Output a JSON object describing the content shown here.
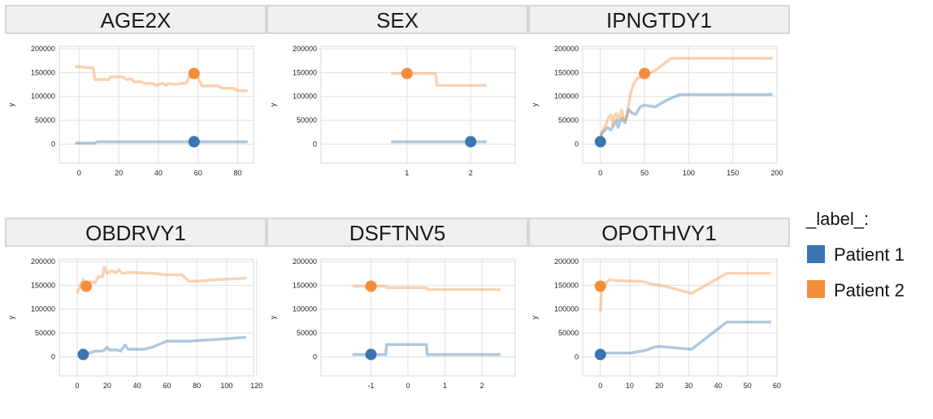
{
  "colors": {
    "patient1": "#3a75b0",
    "patient2": "#f28e3b",
    "strip_bg": "#f0f0f0",
    "strip_border": "#cccccc",
    "grid": "#e0e0e0"
  },
  "legend": {
    "title": "_label_:",
    "items": [
      {
        "label": "Patient 1",
        "color": "#3a75b0"
      },
      {
        "label": "Patient 2",
        "color": "#f28e3b"
      }
    ]
  },
  "chart_data": [
    {
      "type": "line",
      "title": "AGE2X",
      "ylabel": "y",
      "xlim": [
        -10,
        88
      ],
      "ylim": [
        -40000,
        205000
      ],
      "xticks": [
        {
          "v": 0,
          "t": "0"
        },
        {
          "v": 20,
          "t": "20"
        },
        {
          "v": 40,
          "t": "40"
        },
        {
          "v": 60,
          "t": "60"
        },
        {
          "v": 80,
          "t": "80"
        }
      ],
      "yticks": [
        {
          "v": 0,
          "t": "0"
        },
        {
          "v": 50000,
          "t": "50000"
        },
        {
          "v": 100000,
          "t": "100000"
        },
        {
          "v": 150000,
          "t": "150000"
        },
        {
          "v": 200000,
          "t": "200000"
        }
      ],
      "series": [
        {
          "name": "Patient 1",
          "points": [
            [
              -2,
              2000
            ],
            [
              8,
              2000
            ],
            [
              9,
              5000
            ],
            [
              30,
              5000
            ],
            [
              50,
              5000
            ],
            [
              85,
              5000
            ]
          ],
          "marker": [
            58,
            5000
          ]
        },
        {
          "name": "Patient 2",
          "points": [
            [
              -2,
              162000
            ],
            [
              2,
              162000
            ],
            [
              3,
              160000
            ],
            [
              7,
              160000
            ],
            [
              8,
              135000
            ],
            [
              15,
              135000
            ],
            [
              16,
              141000
            ],
            [
              22,
              141000
            ],
            [
              24,
              135000
            ],
            [
              26,
              137000
            ],
            [
              28,
              130000
            ],
            [
              31,
              131000
            ],
            [
              33,
              127000
            ],
            [
              37,
              127000
            ],
            [
              39,
              122000
            ],
            [
              40,
              125000
            ],
            [
              42,
              127000
            ],
            [
              44,
              123000
            ],
            [
              45,
              127000
            ],
            [
              49,
              125000
            ],
            [
              51,
              127000
            ],
            [
              54,
              127000
            ],
            [
              56,
              148000
            ],
            [
              59,
              148000
            ],
            [
              62,
              122000
            ],
            [
              70,
              122000
            ],
            [
              72,
              117000
            ],
            [
              78,
              117000
            ],
            [
              80,
              112000
            ],
            [
              85,
              112000
            ]
          ],
          "marker": [
            58,
            148000
          ]
        }
      ]
    },
    {
      "type": "line",
      "title": "SEX",
      "ylabel": "y",
      "xlim": [
        -0.35,
        2.7
      ],
      "ylim": [
        -40000,
        205000
      ],
      "xticks": [
        {
          "v": 1,
          "t": "1"
        },
        {
          "v": 2,
          "t": "2"
        }
      ],
      "yticks": [
        {
          "v": 0,
          "t": "0"
        },
        {
          "v": 50000,
          "t": "50000"
        },
        {
          "v": 100000,
          "t": "100000"
        },
        {
          "v": 150000,
          "t": "150000"
        },
        {
          "v": 200000,
          "t": "200000"
        }
      ],
      "series": [
        {
          "name": "Patient 1",
          "points": [
            [
              0.75,
              5000
            ],
            [
              2.25,
              5000
            ]
          ],
          "marker": [
            2,
            5000
          ]
        },
        {
          "name": "Patient 2",
          "points": [
            [
              0.75,
              148000
            ],
            [
              1.45,
              148000
            ],
            [
              1.47,
              123000
            ],
            [
              2.25,
              123000
            ]
          ],
          "marker": [
            1,
            148000
          ]
        }
      ]
    },
    {
      "type": "line",
      "title": "IPNGTDY1",
      "ylabel": "y",
      "xlim": [
        -20,
        200
      ],
      "ylim": [
        -40000,
        205000
      ],
      "xticks": [
        {
          "v": 0,
          "t": "0"
        },
        {
          "v": 50,
          "t": "50"
        },
        {
          "v": 100,
          "t": "100"
        },
        {
          "v": 150,
          "t": "150"
        },
        {
          "v": 200,
          "t": "200"
        }
      ],
      "yticks": [
        {
          "v": 0,
          "t": "0"
        },
        {
          "v": 50000,
          "t": "50000"
        },
        {
          "v": 100000,
          "t": "100000"
        },
        {
          "v": 150000,
          "t": "150000"
        },
        {
          "v": 200000,
          "t": "200000"
        }
      ],
      "series": [
        {
          "name": "Patient 1",
          "points": [
            [
              0,
              5000
            ],
            [
              2,
              25000
            ],
            [
              5,
              28000
            ],
            [
              8,
              35000
            ],
            [
              12,
              30000
            ],
            [
              15,
              40000
            ],
            [
              18,
              50000
            ],
            [
              20,
              35000
            ],
            [
              24,
              55000
            ],
            [
              28,
              45000
            ],
            [
              32,
              72000
            ],
            [
              36,
              65000
            ],
            [
              40,
              62000
            ],
            [
              45,
              78000
            ],
            [
              50,
              82000
            ],
            [
              55,
              80000
            ],
            [
              62,
              78000
            ],
            [
              75,
              92000
            ],
            [
              90,
              104000
            ],
            [
              120,
              104000
            ],
            [
              195,
              104000
            ]
          ],
          "marker": [
            0,
            5000
          ]
        },
        {
          "name": "Patient 2",
          "points": [
            [
              0,
              15000
            ],
            [
              3,
              30000
            ],
            [
              6,
              40000
            ],
            [
              9,
              55000
            ],
            [
              12,
              62000
            ],
            [
              14,
              40000
            ],
            [
              16,
              60000
            ],
            [
              18,
              65000
            ],
            [
              20,
              50000
            ],
            [
              24,
              72000
            ],
            [
              27,
              50000
            ],
            [
              30,
              60000
            ],
            [
              34,
              105000
            ],
            [
              38,
              128000
            ],
            [
              42,
              138000
            ],
            [
              47,
              142000
            ],
            [
              52,
              148000
            ],
            [
              58,
              150000
            ],
            [
              65,
              158000
            ],
            [
              80,
              180000
            ],
            [
              120,
              180000
            ],
            [
              195,
              180000
            ]
          ],
          "marker": [
            50,
            148000
          ]
        }
      ]
    },
    {
      "type": "line",
      "title": "OBDRVY1",
      "ylabel": "y",
      "xlim": [
        -12,
        118
      ],
      "ylim": [
        -40000,
        205000
      ],
      "xticks": [
        {
          "v": 0,
          "t": "0"
        },
        {
          "v": 20,
          "t": "20"
        },
        {
          "v": 40,
          "t": "40"
        },
        {
          "v": 60,
          "t": "60"
        },
        {
          "v": 80,
          "t": "80"
        },
        {
          "v": 100,
          "t": "100"
        },
        {
          "v": 120,
          "t": "120"
        }
      ],
      "yticks": [
        {
          "v": 0,
          "t": "0"
        },
        {
          "v": 50000,
          "t": "50000"
        },
        {
          "v": 100000,
          "t": "100000"
        },
        {
          "v": 150000,
          "t": "150000"
        },
        {
          "v": 200000,
          "t": "200000"
        }
      ],
      "series": [
        {
          "name": "Patient 1",
          "points": [
            [
              4,
              5000
            ],
            [
              8,
              8000
            ],
            [
              12,
              12000
            ],
            [
              16,
              12000
            ],
            [
              18,
              14000
            ],
            [
              20,
              20000
            ],
            [
              22,
              14000
            ],
            [
              26,
              15000
            ],
            [
              29,
              12000
            ],
            [
              32,
              25000
            ],
            [
              34,
              16000
            ],
            [
              45,
              16000
            ],
            [
              50,
              20000
            ],
            [
              60,
              33000
            ],
            [
              75,
              33000
            ],
            [
              95,
              37000
            ],
            [
              113,
              41000
            ]
          ],
          "marker": [
            4,
            5000
          ]
        },
        {
          "name": "Patient 2",
          "points": [
            [
              0,
              133000
            ],
            [
              2,
              150000
            ],
            [
              4,
              162000
            ],
            [
              6,
              148000
            ],
            [
              9,
              158000
            ],
            [
              12,
              155000
            ],
            [
              14,
              168000
            ],
            [
              17,
              168000
            ],
            [
              18,
              188000
            ],
            [
              20,
              175000
            ],
            [
              23,
              180000
            ],
            [
              26,
              176000
            ],
            [
              28,
              183000
            ],
            [
              30,
              175000
            ],
            [
              35,
              177000
            ],
            [
              50,
              175000
            ],
            [
              60,
              172000
            ],
            [
              70,
              172000
            ],
            [
              75,
              158000
            ],
            [
              95,
              162000
            ],
            [
              113,
              165000
            ]
          ],
          "marker": [
            6,
            148000
          ]
        }
      ]
    },
    {
      "type": "line",
      "title": "DSFTNV5",
      "ylabel": "y",
      "xlim": [
        -2.35,
        2.9
      ],
      "ylim": [
        -40000,
        205000
      ],
      "xticks": [
        {
          "v": -1,
          "t": "-1"
        },
        {
          "v": 0,
          "t": "0"
        },
        {
          "v": 1,
          "t": "1"
        },
        {
          "v": 2,
          "t": "2"
        }
      ],
      "yticks": [
        {
          "v": 0,
          "t": "0"
        },
        {
          "v": 50000,
          "t": "50000"
        },
        {
          "v": 100000,
          "t": "100000"
        },
        {
          "v": 150000,
          "t": "150000"
        },
        {
          "v": 200000,
          "t": "200000"
        }
      ],
      "series": [
        {
          "name": "Patient 1",
          "points": [
            [
              -1.5,
              5000
            ],
            [
              -0.6,
              5000
            ],
            [
              -0.58,
              26000
            ],
            [
              0.5,
              26000
            ],
            [
              0.52,
              5000
            ],
            [
              2.5,
              5000
            ]
          ],
          "marker": [
            -1,
            5000
          ]
        },
        {
          "name": "Patient 2",
          "points": [
            [
              -1.5,
              148000
            ],
            [
              -0.6,
              148000
            ],
            [
              -0.58,
              145000
            ],
            [
              0.5,
              145000
            ],
            [
              0.52,
              141000
            ],
            [
              2.5,
              141000
            ]
          ],
          "marker": [
            -1,
            148000
          ]
        }
      ]
    },
    {
      "type": "line",
      "title": "OPOTHVY1",
      "ylabel": "y",
      "xlim": [
        -6,
        60
      ],
      "ylim": [
        -40000,
        205000
      ],
      "xticks": [
        {
          "v": 0,
          "t": "0"
        },
        {
          "v": 10,
          "t": "10"
        },
        {
          "v": 20,
          "t": "20"
        },
        {
          "v": 30,
          "t": "30"
        },
        {
          "v": 40,
          "t": "40"
        },
        {
          "v": 50,
          "t": "50"
        },
        {
          "v": 60,
          "t": "60"
        }
      ],
      "yticks": [
        {
          "v": 0,
          "t": "0"
        },
        {
          "v": 50000,
          "t": "50000"
        },
        {
          "v": 100000,
          "t": "100000"
        },
        {
          "v": 150000,
          "t": "150000"
        },
        {
          "v": 200000,
          "t": "200000"
        }
      ],
      "series": [
        {
          "name": "Patient 1",
          "points": [
            [
              0,
              5000
            ],
            [
              1,
              8000
            ],
            [
              10,
              8000
            ],
            [
              12,
              10000
            ],
            [
              14,
              12000
            ],
            [
              16,
              15000
            ],
            [
              18,
              20000
            ],
            [
              20,
              22000
            ],
            [
              31,
              16000
            ],
            [
              43,
              73000
            ],
            [
              58,
              73000
            ]
          ],
          "marker": [
            0,
            5000
          ]
        },
        {
          "name": "Patient 2",
          "points": [
            [
              0,
              95000
            ],
            [
              0.5,
              148000
            ],
            [
              2,
              155000
            ],
            [
              3,
              162000
            ],
            [
              5,
              160000
            ],
            [
              14,
              158000
            ],
            [
              18,
              152000
            ],
            [
              22,
              148000
            ],
            [
              31,
              133000
            ],
            [
              43,
              175000
            ],
            [
              58,
              175000
            ]
          ],
          "marker": [
            0,
            148000
          ]
        }
      ]
    }
  ]
}
